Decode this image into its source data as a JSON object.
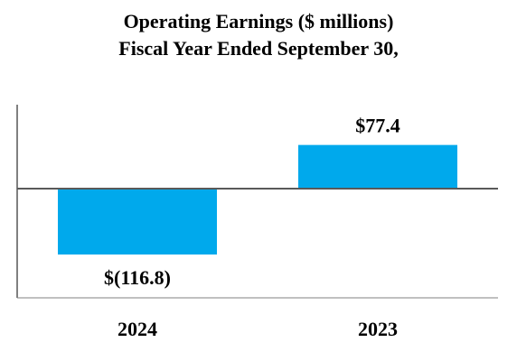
{
  "chart_data": {
    "type": "bar",
    "title": "Operating Earnings ($ millions)",
    "subtitle": "Fiscal Year Ended September 30,",
    "categories": [
      "2024",
      "2023"
    ],
    "values": [
      -116.8,
      77.4
    ],
    "data_labels": [
      "$(116.8)",
      "$77.4"
    ],
    "bar_color": "#00a9ec",
    "ylim": [
      -193,
      150
    ],
    "grid": false,
    "legend": "none"
  }
}
